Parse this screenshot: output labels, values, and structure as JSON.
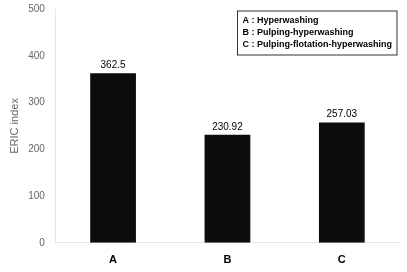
{
  "chart_data": {
    "type": "bar",
    "categories": [
      "A",
      "B",
      "C"
    ],
    "values": [
      362.5,
      230.92,
      257.03
    ],
    "color": "#0d0d0d",
    "ylim": [
      0,
      500
    ],
    "yticks": [
      0,
      100,
      200,
      300,
      400,
      500
    ],
    "ylabel": "ERIC index",
    "data_labels": true,
    "grid": false,
    "annotations": [
      "A : Hyperwashing",
      "B : Pulping-hyperwashing",
      "C : Pulping-flotation-hyperwashing"
    ]
  }
}
